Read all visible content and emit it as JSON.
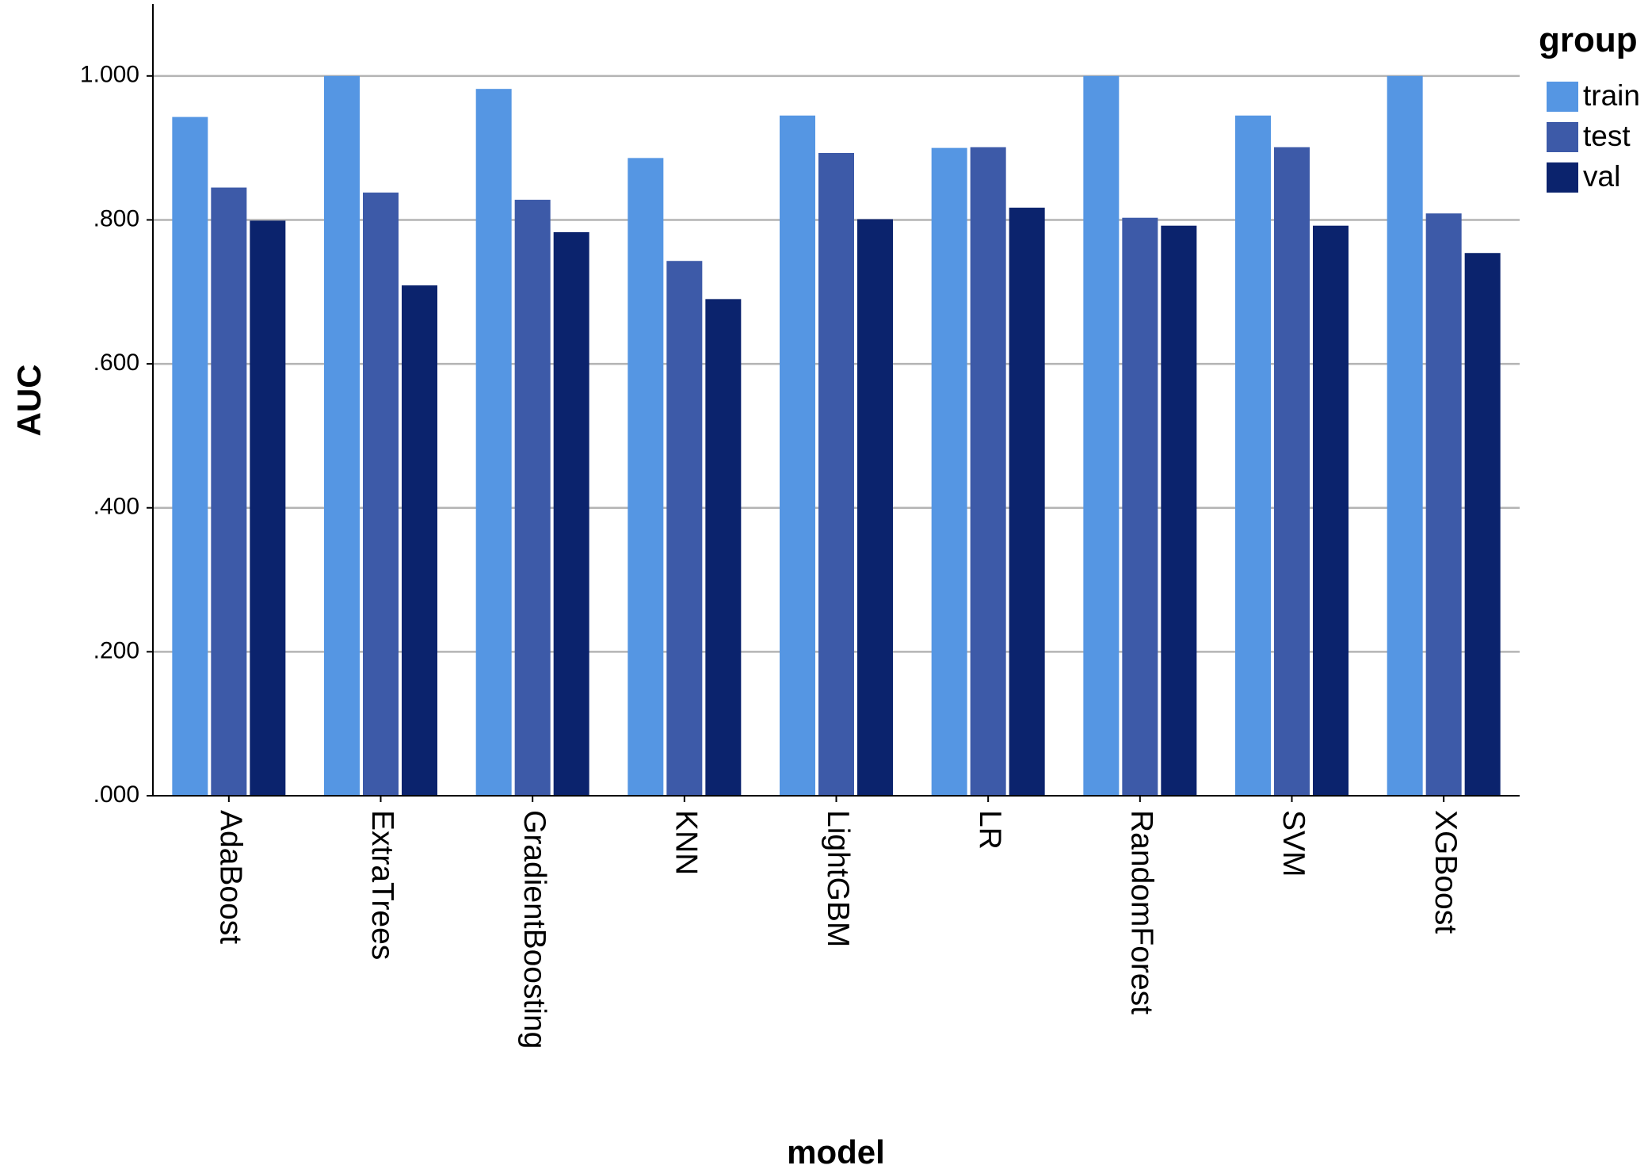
{
  "chart_data": {
    "type": "bar",
    "title": "",
    "xlabel": "model",
    "ylabel": "AUC",
    "categories": [
      "AdaBoost",
      "ExtraTrees",
      "GradientBoosting",
      "KNN",
      "LightGBM",
      "LR",
      "RandomForest",
      "SVM",
      "XGBoost"
    ],
    "series": [
      {
        "name": "train",
        "color": "#5596e3",
        "values": [
          0.943,
          1.0,
          0.982,
          0.886,
          0.945,
          0.9,
          1.0,
          0.945,
          1.0
        ]
      },
      {
        "name": "test",
        "color": "#3d5aa8",
        "values": [
          0.845,
          0.838,
          0.828,
          0.743,
          0.893,
          0.901,
          0.803,
          0.901,
          0.809
        ]
      },
      {
        "name": "val",
        "color": "#0b236d",
        "values": [
          0.799,
          0.709,
          0.783,
          0.69,
          0.801,
          0.817,
          0.792,
          0.792,
          0.754
        ]
      }
    ],
    "yticks": [
      0.0,
      0.2,
      0.4,
      0.6,
      0.8,
      1.0
    ],
    "ytick_labels": [
      ".000",
      ".200",
      ".400",
      ".600",
      ".800",
      "1.000"
    ],
    "ylim": [
      0,
      1.1
    ],
    "grid": true,
    "legend": {
      "title": "group",
      "position": "top-right"
    }
  }
}
